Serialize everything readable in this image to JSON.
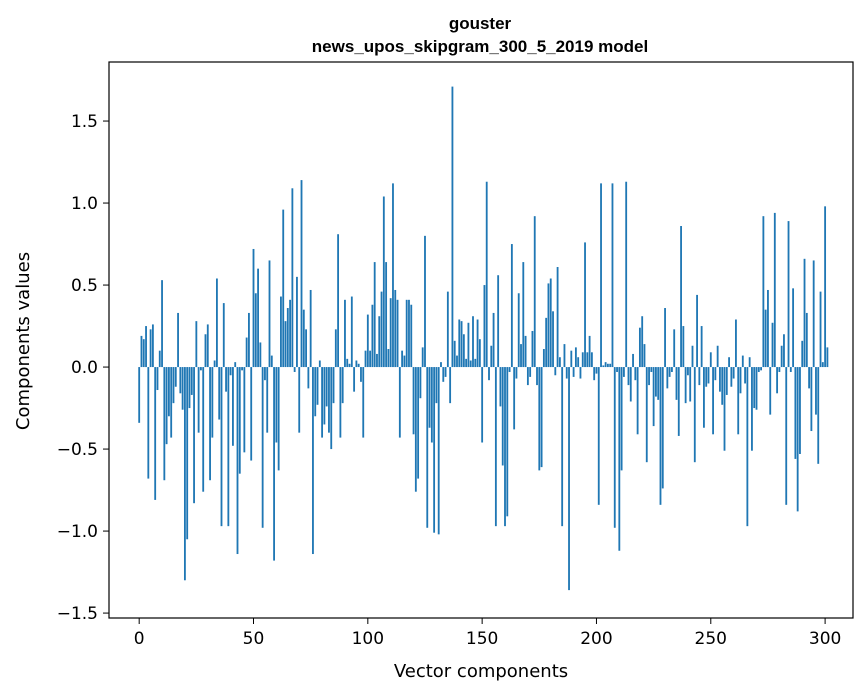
{
  "chart_data": {
    "type": "bar",
    "title": "gouster",
    "subtitle": "news_upos_skipgram_300_5_2019 model",
    "xlabel": "Vector components",
    "ylabel": "Components values",
    "xlim": [
      -13.2,
      312.2
    ],
    "ylim": [
      -1.53,
      1.86
    ],
    "xticks": [
      0,
      50,
      100,
      150,
      200,
      250,
      300
    ],
    "yticks": [
      -1.5,
      -1.0,
      -0.5,
      0.0,
      0.5,
      1.0,
      1.5
    ],
    "ytick_labels": [
      "−1.5",
      "−1.0",
      "−0.5",
      "0.0",
      "0.5",
      "1.0",
      "1.5"
    ],
    "bar_color": "#1f77b4",
    "values": [
      -0.34,
      0.19,
      0.17,
      0.25,
      -0.68,
      0.23,
      0.26,
      -0.81,
      -0.14,
      0.1,
      0.53,
      -0.69,
      -0.47,
      -0.3,
      -0.43,
      -0.22,
      -0.12,
      0.33,
      -0.16,
      -0.26,
      -1.3,
      -1.05,
      -0.25,
      -0.17,
      -0.83,
      0.28,
      -0.4,
      -0.02,
      -0.76,
      0.2,
      0.26,
      -0.69,
      -0.43,
      0.04,
      0.54,
      -0.32,
      -0.97,
      0.39,
      -0.15,
      -0.97,
      -0.05,
      -0.48,
      0.03,
      -1.14,
      -0.65,
      -0.02,
      -0.52,
      0.18,
      0.33,
      -0.57,
      0.72,
      0.45,
      0.6,
      0.15,
      -0.98,
      -0.08,
      -0.4,
      0.65,
      0.07,
      -1.18,
      -0.46,
      -0.63,
      0.43,
      0.96,
      0.28,
      0.36,
      0.41,
      1.09,
      -0.03,
      0.55,
      -0.4,
      1.14,
      0.35,
      0.23,
      -0.13,
      0.47,
      -1.14,
      -0.3,
      -0.23,
      0.04,
      -0.43,
      -0.35,
      -0.24,
      -0.4,
      -0.5,
      -0.22,
      0.23,
      0.81,
      -0.43,
      -0.22,
      0.41,
      0.05,
      0.02,
      0.43,
      -0.15,
      0.04,
      0.02,
      -0.09,
      -0.43,
      0.1,
      0.32,
      0.1,
      0.38,
      0.64,
      0.08,
      0.31,
      0.46,
      1.04,
      0.64,
      0.11,
      0.42,
      1.12,
      0.47,
      0.41,
      -0.43,
      0.1,
      0.07,
      0.41,
      0.41,
      0.38,
      -0.41,
      -0.76,
      -0.68,
      -0.19,
      0.12,
      0.8,
      -0.98,
      -0.37,
      -0.46,
      -1.01,
      -0.22,
      -1.02,
      0.03,
      -0.09,
      -0.06,
      0.46,
      -0.22,
      1.71,
      0.16,
      0.07,
      0.29,
      0.28,
      0.2,
      0.05,
      0.27,
      0.04,
      0.31,
      0.05,
      0.29,
      0.17,
      -0.46,
      0.5,
      1.13,
      -0.08,
      0.13,
      0.33,
      -0.97,
      0.56,
      -0.24,
      -0.6,
      -0.97,
      -0.91,
      -0.03,
      0.75,
      -0.38,
      -0.07,
      0.45,
      0.14,
      0.64,
      0.19,
      -0.11,
      -0.06,
      0.22,
      0.92,
      -0.11,
      -0.63,
      -0.61,
      0.11,
      0.3,
      0.51,
      0.54,
      0.34,
      -0.05,
      0.61,
      0.06,
      -0.97,
      0.14,
      -0.07,
      -1.36,
      0.1,
      -0.06,
      0.12,
      0.06,
      -0.07,
      0.09,
      0.76,
      0.09,
      0.19,
      0.09,
      -0.08,
      -0.04,
      -0.84,
      1.12,
      0.01,
      0.03,
      0.02,
      0.02,
      1.12,
      -0.98,
      -0.03,
      -1.12,
      -0.63,
      -0.06,
      1.13,
      -0.11,
      -0.21,
      0.08,
      -0.08,
      -0.41,
      0.24,
      0.31,
      0.14,
      -0.58,
      -0.11,
      -0.03,
      -0.36,
      -0.18,
      -0.2,
      -0.84,
      -0.74,
      0.36,
      -0.13,
      -0.06,
      -0.03,
      0.23,
      -0.2,
      -0.42,
      0.86,
      0.25,
      -0.22,
      -0.05,
      -0.21,
      0.13,
      -0.58,
      0.44,
      -0.11,
      0.25,
      -0.37,
      -0.12,
      -0.1,
      0.09,
      -0.41,
      -0.08,
      0.13,
      -0.15,
      -0.23,
      -0.51,
      -0.17,
      0.06,
      -0.12,
      -0.07,
      0.29,
      -0.41,
      -0.16,
      0.07,
      -0.1,
      -0.97,
      0.06,
      -0.51,
      -0.25,
      -0.26,
      -0.03,
      -0.02,
      0.92,
      0.35,
      0.47,
      -0.29,
      0.27,
      0.94,
      -0.16,
      -0.03,
      0.13,
      0.2,
      -0.84,
      0.89,
      -0.03,
      0.48,
      -0.56,
      -0.88,
      -0.53,
      0.16,
      0.66,
      0.33,
      -0.13,
      -0.39,
      0.65,
      -0.29,
      -0.59,
      0.46,
      0.03,
      0.98,
      0.12
    ]
  }
}
